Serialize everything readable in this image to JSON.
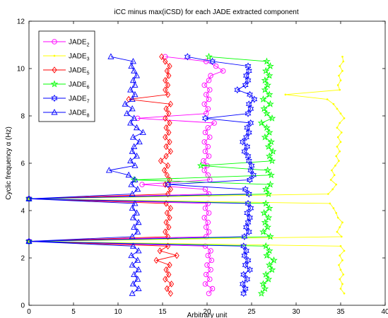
{
  "chart_data": {
    "type": "line",
    "title": "iCC minus max(iCSD) for each JADE extracted component",
    "xlabel": "Arbitrary unit",
    "ylabel": "Cyclic frequency α (Hz)",
    "xlim": [
      0,
      40
    ],
    "ylim": [
      0,
      12
    ],
    "xticks": [
      0,
      5,
      10,
      15,
      20,
      25,
      30,
      35,
      40
    ],
    "yticks": [
      0,
      2,
      4,
      6,
      8,
      10,
      12
    ],
    "grid": false,
    "legend_position": "top-left",
    "series": [
      {
        "name": "JADE",
        "subscript": "2",
        "color": "#ff00ff",
        "marker": "circle",
        "points": [
          [
            20.2,
            0.5
          ],
          [
            20.6,
            0.7
          ],
          [
            19.8,
            0.9
          ],
          [
            20.3,
            1.1
          ],
          [
            19.9,
            1.3
          ],
          [
            20.4,
            1.5
          ],
          [
            20.0,
            1.7
          ],
          [
            20.5,
            1.9
          ],
          [
            20.1,
            2.1
          ],
          [
            20.4,
            2.3
          ],
          [
            19.8,
            2.5
          ],
          [
            0,
            2.7
          ],
          [
            19.9,
            2.9
          ],
          [
            20.2,
            3.1
          ],
          [
            19.9,
            3.3
          ],
          [
            20.1,
            3.5
          ],
          [
            19.7,
            3.7
          ],
          [
            20.2,
            3.9
          ],
          [
            19.8,
            4.1
          ],
          [
            20.1,
            4.3
          ],
          [
            0,
            4.5
          ],
          [
            20.2,
            4.7
          ],
          [
            19.8,
            4.9
          ],
          [
            12.7,
            5.1
          ],
          [
            20.3,
            5.3
          ],
          [
            20.1,
            5.5
          ],
          [
            19.7,
            5.7
          ],
          [
            20.0,
            5.9
          ],
          [
            19.6,
            6.1
          ],
          [
            20.2,
            6.3
          ],
          [
            19.8,
            6.5
          ],
          [
            20.1,
            6.7
          ],
          [
            19.7,
            6.9
          ],
          [
            20.3,
            7.1
          ],
          [
            19.8,
            7.3
          ],
          [
            20.1,
            7.5
          ],
          [
            20.8,
            7.7
          ],
          [
            12.2,
            7.9
          ],
          [
            19.9,
            8.1
          ],
          [
            20.1,
            8.3
          ],
          [
            19.7,
            8.5
          ],
          [
            20.2,
            8.7
          ],
          [
            19.9,
            8.9
          ],
          [
            20.3,
            9.1
          ],
          [
            19.7,
            9.3
          ],
          [
            20.2,
            9.5
          ],
          [
            20.4,
            9.7
          ],
          [
            21.8,
            9.9
          ],
          [
            21.0,
            10.1
          ],
          [
            19.9,
            10.3
          ],
          [
            15.3,
            10.5
          ]
        ]
      },
      {
        "name": "JADE",
        "subscript": "3",
        "color": "#ffff00",
        "marker": "point",
        "points": [
          [
            35.4,
            0.5
          ],
          [
            35.0,
            0.7
          ],
          [
            35.2,
            0.9
          ],
          [
            34.9,
            1.1
          ],
          [
            35.3,
            1.3
          ],
          [
            35.0,
            1.5
          ],
          [
            34.8,
            1.7
          ],
          [
            35.2,
            1.9
          ],
          [
            34.9,
            2.1
          ],
          [
            35.4,
            2.3
          ],
          [
            35.0,
            2.5
          ],
          [
            0,
            2.7
          ],
          [
            35.1,
            2.9
          ],
          [
            34.6,
            3.1
          ],
          [
            34.9,
            3.3
          ],
          [
            35.2,
            3.5
          ],
          [
            34.7,
            3.7
          ],
          [
            34.5,
            3.9
          ],
          [
            34.2,
            4.1
          ],
          [
            33.8,
            4.3
          ],
          [
            0,
            4.5
          ],
          [
            33.6,
            4.7
          ],
          [
            34.1,
            4.9
          ],
          [
            34.5,
            5.1
          ],
          [
            33.9,
            5.3
          ],
          [
            34.3,
            5.5
          ],
          [
            34.0,
            5.7
          ],
          [
            34.4,
            5.9
          ],
          [
            34.8,
            6.1
          ],
          [
            34.5,
            6.3
          ],
          [
            34.9,
            6.5
          ],
          [
            34.6,
            6.7
          ],
          [
            35.0,
            6.9
          ],
          [
            34.7,
            7.1
          ],
          [
            35.1,
            7.3
          ],
          [
            34.6,
            7.5
          ],
          [
            34.9,
            7.7
          ],
          [
            35.4,
            7.9
          ],
          [
            35.0,
            8.1
          ],
          [
            34.6,
            8.3
          ],
          [
            34.2,
            8.5
          ],
          [
            33.5,
            8.7
          ],
          [
            28.8,
            8.9
          ],
          [
            34.9,
            9.1
          ],
          [
            34.7,
            9.3
          ],
          [
            35.0,
            9.5
          ],
          [
            34.8,
            9.7
          ],
          [
            35.2,
            9.9
          ],
          [
            34.9,
            10.1
          ],
          [
            35.3,
            10.3
          ],
          [
            35.2,
            10.5
          ]
        ]
      },
      {
        "name": "JADE",
        "subscript": "5",
        "color": "#ff0000",
        "marker": "diamond",
        "points": [
          [
            15.9,
            0.5
          ],
          [
            15.5,
            0.7
          ],
          [
            16.0,
            0.9
          ],
          [
            15.3,
            1.1
          ],
          [
            15.7,
            1.3
          ],
          [
            15.4,
            1.5
          ],
          [
            15.8,
            1.7
          ],
          [
            14.3,
            1.9
          ],
          [
            16.6,
            2.1
          ],
          [
            14.7,
            2.3
          ],
          [
            15.6,
            2.5
          ],
          [
            0,
            2.7
          ],
          [
            15.6,
            2.9
          ],
          [
            15.3,
            3.1
          ],
          [
            15.7,
            3.3
          ],
          [
            15.4,
            3.5
          ],
          [
            15.8,
            3.7
          ],
          [
            15.5,
            3.9
          ],
          [
            15.9,
            4.1
          ],
          [
            15.4,
            4.3
          ],
          [
            0,
            4.5
          ],
          [
            15.6,
            4.7
          ],
          [
            15.9,
            4.9
          ],
          [
            15.3,
            5.1
          ],
          [
            15.8,
            5.3
          ],
          [
            15.5,
            5.5
          ],
          [
            15.2,
            5.7
          ],
          [
            15.6,
            5.9
          ],
          [
            14.8,
            6.1
          ],
          [
            15.4,
            6.3
          ],
          [
            15.9,
            6.5
          ],
          [
            15.4,
            6.7
          ],
          [
            15.8,
            6.9
          ],
          [
            15.3,
            7.1
          ],
          [
            15.7,
            7.3
          ],
          [
            15.4,
            7.5
          ],
          [
            15.8,
            7.7
          ],
          [
            15.3,
            7.9
          ],
          [
            15.7,
            8.1
          ],
          [
            15.4,
            8.3
          ],
          [
            15.9,
            8.5
          ],
          [
            11.2,
            8.7
          ],
          [
            15.6,
            8.9
          ],
          [
            15.3,
            9.1
          ],
          [
            15.6,
            9.3
          ],
          [
            15.3,
            9.5
          ],
          [
            15.7,
            9.7
          ],
          [
            15.5,
            9.9
          ],
          [
            15.8,
            10.1
          ],
          [
            15.3,
            10.3
          ],
          [
            14.9,
            10.5
          ]
        ]
      },
      {
        "name": "JADE",
        "subscript": "6",
        "color": "#00ff00",
        "marker": "star",
        "points": [
          [
            26.1,
            0.5
          ],
          [
            26.5,
            0.7
          ],
          [
            26.3,
            0.9
          ],
          [
            26.9,
            1.1
          ],
          [
            26.6,
            1.3
          ],
          [
            27.3,
            1.5
          ],
          [
            27.0,
            1.7
          ],
          [
            27.5,
            1.9
          ],
          [
            26.7,
            2.1
          ],
          [
            27.0,
            2.3
          ],
          [
            26.6,
            2.5
          ],
          [
            0,
            2.7
          ],
          [
            27.1,
            2.9
          ],
          [
            26.3,
            3.1
          ],
          [
            26.8,
            3.3
          ],
          [
            26.5,
            3.5
          ],
          [
            26.9,
            3.7
          ],
          [
            26.4,
            3.9
          ],
          [
            27.0,
            4.1
          ],
          [
            26.6,
            4.3
          ],
          [
            0,
            4.5
          ],
          [
            26.9,
            4.7
          ],
          [
            26.6,
            4.9
          ],
          [
            27.1,
            5.1
          ],
          [
            11.8,
            5.3
          ],
          [
            27.2,
            5.5
          ],
          [
            26.8,
            5.7
          ],
          [
            19.3,
            5.9
          ],
          [
            27.3,
            6.1
          ],
          [
            27.0,
            6.3
          ],
          [
            27.4,
            6.5
          ],
          [
            26.9,
            6.7
          ],
          [
            27.2,
            6.9
          ],
          [
            26.5,
            7.1
          ],
          [
            27.0,
            7.3
          ],
          [
            26.7,
            7.5
          ],
          [
            26.1,
            7.7
          ],
          [
            27.3,
            7.9
          ],
          [
            26.7,
            8.1
          ],
          [
            26.4,
            8.3
          ],
          [
            27.1,
            8.5
          ],
          [
            26.3,
            8.7
          ],
          [
            27.0,
            8.9
          ],
          [
            26.5,
            9.1
          ],
          [
            26.8,
            9.3
          ],
          [
            26.5,
            9.5
          ],
          [
            27.0,
            9.7
          ],
          [
            26.6,
            9.9
          ],
          [
            27.1,
            10.1
          ],
          [
            26.7,
            10.3
          ],
          [
            20.2,
            10.5
          ]
        ]
      },
      {
        "name": "JADE",
        "subscript": "7",
        "color": "#0000ff",
        "marker": "hexagram",
        "points": [
          [
            24.1,
            0.5
          ],
          [
            24.3,
            0.7
          ],
          [
            24.0,
            0.9
          ],
          [
            24.5,
            1.1
          ],
          [
            24.1,
            1.3
          ],
          [
            24.8,
            1.5
          ],
          [
            24.3,
            1.7
          ],
          [
            24.6,
            1.9
          ],
          [
            24.2,
            2.1
          ],
          [
            24.4,
            2.3
          ],
          [
            24.1,
            2.5
          ],
          [
            0,
            2.7
          ],
          [
            24.2,
            2.9
          ],
          [
            24.7,
            3.1
          ],
          [
            24.4,
            3.3
          ],
          [
            24.6,
            3.5
          ],
          [
            24.8,
            3.7
          ],
          [
            24.5,
            3.9
          ],
          [
            24.9,
            4.1
          ],
          [
            24.6,
            4.3
          ],
          [
            0,
            4.5
          ],
          [
            24.7,
            4.7
          ],
          [
            24.3,
            4.9
          ],
          [
            15.6,
            5.1
          ],
          [
            24.8,
            5.3
          ],
          [
            25.2,
            5.5
          ],
          [
            24.9,
            5.7
          ],
          [
            25.0,
            5.9
          ],
          [
            24.7,
            6.1
          ],
          [
            24.6,
            6.3
          ],
          [
            24.2,
            6.5
          ],
          [
            24.5,
            6.7
          ],
          [
            24.0,
            6.9
          ],
          [
            24.4,
            7.1
          ],
          [
            24.7,
            7.3
          ],
          [
            24.5,
            7.5
          ],
          [
            24.9,
            7.7
          ],
          [
            19.8,
            7.9
          ],
          [
            24.6,
            8.1
          ],
          [
            24.9,
            8.3
          ],
          [
            24.7,
            8.5
          ],
          [
            25.3,
            8.7
          ],
          [
            24.8,
            8.9
          ],
          [
            23.4,
            9.1
          ],
          [
            24.3,
            9.3
          ],
          [
            24.6,
            9.5
          ],
          [
            24.4,
            9.7
          ],
          [
            24.7,
            9.9
          ],
          [
            24.6,
            10.1
          ],
          [
            20.6,
            10.3
          ],
          [
            17.8,
            10.5
          ]
        ]
      },
      {
        "name": "JADE",
        "subscript": "8",
        "color": "#0000ff",
        "marker": "triangle",
        "points": [
          [
            11.6,
            0.5
          ],
          [
            12.3,
            0.7
          ],
          [
            11.7,
            0.9
          ],
          [
            12.2,
            1.1
          ],
          [
            11.8,
            1.3
          ],
          [
            12.3,
            1.5
          ],
          [
            11.6,
            1.7
          ],
          [
            12.2,
            1.9
          ],
          [
            11.5,
            2.1
          ],
          [
            12.3,
            2.3
          ],
          [
            11.7,
            2.5
          ],
          [
            0,
            2.7
          ],
          [
            11.6,
            2.9
          ],
          [
            12.2,
            3.1
          ],
          [
            11.8,
            3.3
          ],
          [
            12.3,
            3.5
          ],
          [
            11.7,
            3.7
          ],
          [
            12.1,
            3.9
          ],
          [
            11.6,
            4.1
          ],
          [
            11.9,
            4.3
          ],
          [
            0,
            4.5
          ],
          [
            11.6,
            4.7
          ],
          [
            12.2,
            4.9
          ],
          [
            11.5,
            5.1
          ],
          [
            11.9,
            5.3
          ],
          [
            11.2,
            5.5
          ],
          [
            9.0,
            5.7
          ],
          [
            11.9,
            5.9
          ],
          [
            11.4,
            6.1
          ],
          [
            12.1,
            6.3
          ],
          [
            11.6,
            6.5
          ],
          [
            11.8,
            6.7
          ],
          [
            12.4,
            6.9
          ],
          [
            11.7,
            7.1
          ],
          [
            12.8,
            7.3
          ],
          [
            12.1,
            7.5
          ],
          [
            11.4,
            7.7
          ],
          [
            11.8,
            7.9
          ],
          [
            11.0,
            8.1
          ],
          [
            11.6,
            8.3
          ],
          [
            10.8,
            8.5
          ],
          [
            11.6,
            8.7
          ],
          [
            11.9,
            8.9
          ],
          [
            11.4,
            9.1
          ],
          [
            11.9,
            9.3
          ],
          [
            11.7,
            9.5
          ],
          [
            12.1,
            9.7
          ],
          [
            11.8,
            9.9
          ],
          [
            11.5,
            10.1
          ],
          [
            11.7,
            10.3
          ],
          [
            9.2,
            10.5
          ]
        ]
      }
    ]
  }
}
